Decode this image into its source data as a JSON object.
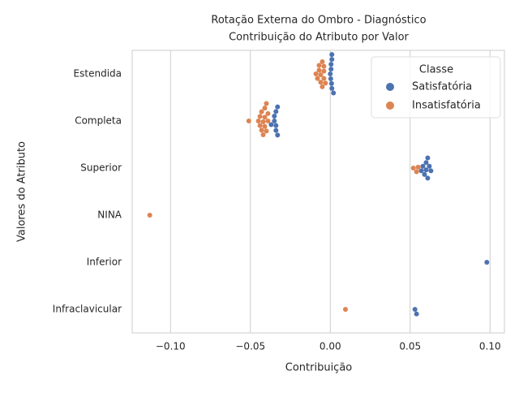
{
  "chart_data": {
    "type": "swarm",
    "title": [
      "Rotação Externa do Ombro - Diagnóstico",
      "Contribuição do Atributo por Valor"
    ],
    "x_label": "Contribuição",
    "y_label": "Valores do Atributo",
    "categories": [
      "Estendida",
      "Completa",
      "Superior",
      "NINA",
      "Inferior",
      "Infraclavicular"
    ],
    "series": [
      {
        "name": "Satisfatória",
        "color": "#4c72b0",
        "values": [
          [
            0.001,
            0.0005,
            0.0,
            0.002,
            0.0003,
            0.001,
            0.0005,
            0.0008,
            0.001
          ],
          [
            -0.033,
            -0.034,
            -0.035,
            -0.037,
            -0.034,
            -0.035,
            -0.033,
            -0.034
          ],
          [
            0.06,
            0.061,
            0.062,
            0.063,
            0.059,
            0.058,
            0.061,
            0.057,
            0.06
          ],
          [],
          [
            0.098
          ],
          [
            0.054,
            0.053
          ]
        ]
      },
      {
        "name": "Insatisfatória",
        "color": "#dd8452",
        "values": [
          [
            -0.004,
            -0.005,
            -0.006,
            -0.007,
            -0.009,
            -0.005,
            -0.004,
            -0.007,
            -0.006,
            -0.008,
            -0.003,
            -0.004
          ],
          [
            -0.041,
            -0.042,
            -0.043,
            -0.044,
            -0.045,
            -0.051,
            -0.043,
            -0.041,
            -0.039,
            -0.04,
            -0.042,
            -0.044,
            -0.041,
            -0.04,
            -0.039
          ],
          [
            0.052,
            0.054,
            0.055
          ],
          [
            -0.113
          ],
          [],
          [
            0.0095
          ]
        ]
      }
    ],
    "legend_title": "Classe",
    "legend": "upper right",
    "xlim": [
      -0.124,
      0.109
    ],
    "xticks": [
      {
        "value": -0.1,
        "label": "−0.10"
      },
      {
        "value": -0.05,
        "label": "−0.05"
      },
      {
        "value": 0,
        "label": "0.00"
      },
      0.05,
      {
        "value": 0.1,
        "label": "0.10"
      }
    ],
    "grid": true
  }
}
